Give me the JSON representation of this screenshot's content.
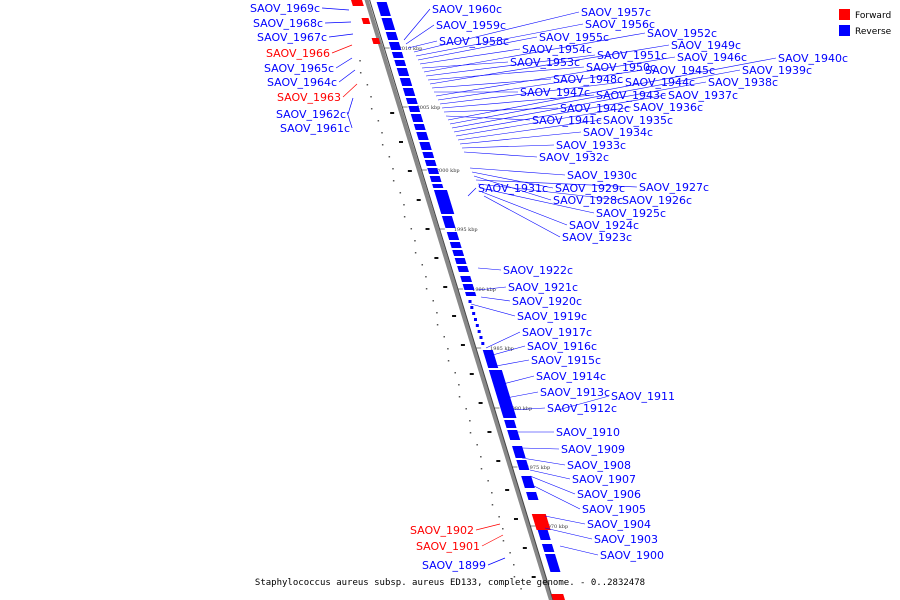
{
  "legend": {
    "forward_label": "Forward",
    "reverse_label": "Reverse",
    "forward_color": "#ff0000",
    "reverse_color": "#0000ff"
  },
  "caption": "Staphylococcus aureus subsp. aureus ED133, complete genome. - 0..2832478",
  "ticks": [
    "2010 kbp",
    "2005 kbp",
    "2000 kbp",
    "1995 kbp",
    "1990 kbp",
    "1985 kbp",
    "1980 kbp",
    "1975 kbp",
    "1970 kbp"
  ],
  "genes_left": [
    {
      "name": "SAOV_1969c",
      "strand": "reverse"
    },
    {
      "name": "SAOV_1968c",
      "strand": "reverse"
    },
    {
      "name": "SAOV_1967c",
      "strand": "reverse"
    },
    {
      "name": "SAOV_1966",
      "strand": "forward"
    },
    {
      "name": "SAOV_1965c",
      "strand": "reverse"
    },
    {
      "name": "SAOV_1964c",
      "strand": "reverse"
    },
    {
      "name": "SAOV_1963",
      "strand": "forward"
    },
    {
      "name": "SAOV_1962c",
      "strand": "reverse"
    },
    {
      "name": "SAOV_1961c",
      "strand": "reverse"
    },
    {
      "name": "SAOV_1902",
      "strand": "forward"
    },
    {
      "name": "SAOV_1901",
      "strand": "forward"
    },
    {
      "name": "SAOV_1899",
      "strand": "reverse"
    }
  ],
  "genes_right": [
    {
      "name": "SAOV_1960c",
      "strand": "reverse"
    },
    {
      "name": "SAOV_1959c",
      "strand": "reverse"
    },
    {
      "name": "SAOV_1958c",
      "strand": "reverse"
    },
    {
      "name": "SAOV_1957c",
      "strand": "reverse"
    },
    {
      "name": "SAOV_1956c",
      "strand": "reverse"
    },
    {
      "name": "SAOV_1955c",
      "strand": "reverse"
    },
    {
      "name": "SAOV_1954c",
      "strand": "reverse"
    },
    {
      "name": "SAOV_1953c",
      "strand": "reverse"
    },
    {
      "name": "SAOV_1952c",
      "strand": "reverse"
    },
    {
      "name": "SAOV_1951c",
      "strand": "reverse"
    },
    {
      "name": "SAOV_1950c",
      "strand": "reverse"
    },
    {
      "name": "SAOV_1949c",
      "strand": "reverse"
    },
    {
      "name": "SAOV_1948c",
      "strand": "reverse"
    },
    {
      "name": "SAOV_1947c",
      "strand": "reverse"
    },
    {
      "name": "SAOV_1946c",
      "strand": "reverse"
    },
    {
      "name": "SAOV_1945c",
      "strand": "reverse"
    },
    {
      "name": "SAOV_1944c",
      "strand": "reverse"
    },
    {
      "name": "SAOV_1943c",
      "strand": "reverse"
    },
    {
      "name": "SAOV_1942c",
      "strand": "reverse"
    },
    {
      "name": "SAOV_1941c",
      "strand": "reverse"
    },
    {
      "name": "SAOV_1940c",
      "strand": "reverse"
    },
    {
      "name": "SAOV_1939c",
      "strand": "reverse"
    },
    {
      "name": "SAOV_1938c",
      "strand": "reverse"
    },
    {
      "name": "SAOV_1937c",
      "strand": "reverse"
    },
    {
      "name": "SAOV_1936c",
      "strand": "reverse"
    },
    {
      "name": "SAOV_1935c",
      "strand": "reverse"
    },
    {
      "name": "SAOV_1934c",
      "strand": "reverse"
    },
    {
      "name": "SAOV_1933c",
      "strand": "reverse"
    },
    {
      "name": "SAOV_1932c",
      "strand": "reverse"
    },
    {
      "name": "SAOV_1931c",
      "strand": "reverse"
    },
    {
      "name": "SAOV_1930c",
      "strand": "reverse"
    },
    {
      "name": "SAOV_1929c",
      "strand": "reverse"
    },
    {
      "name": "SAOV_1928c",
      "strand": "reverse"
    },
    {
      "name": "SAOV_1927c",
      "strand": "reverse"
    },
    {
      "name": "SAOV_1926c",
      "strand": "reverse"
    },
    {
      "name": "SAOV_1925c",
      "strand": "reverse"
    },
    {
      "name": "SAOV_1924c",
      "strand": "reverse"
    },
    {
      "name": "SAOV_1923c",
      "strand": "reverse"
    },
    {
      "name": "SAOV_1922c",
      "strand": "reverse"
    },
    {
      "name": "SAOV_1921c",
      "strand": "reverse"
    },
    {
      "name": "SAOV_1920c",
      "strand": "reverse"
    },
    {
      "name": "SAOV_1919c",
      "strand": "reverse"
    },
    {
      "name": "SAOV_1917c",
      "strand": "reverse"
    },
    {
      "name": "SAOV_1916c",
      "strand": "reverse"
    },
    {
      "name": "SAOV_1915c",
      "strand": "reverse"
    },
    {
      "name": "SAOV_1914c",
      "strand": "reverse"
    },
    {
      "name": "SAOV_1913c",
      "strand": "reverse"
    },
    {
      "name": "SAOV_1912c",
      "strand": "reverse"
    },
    {
      "name": "SAOV_1911",
      "strand": "reverse"
    },
    {
      "name": "SAOV_1910",
      "strand": "reverse"
    },
    {
      "name": "SAOV_1909",
      "strand": "reverse"
    },
    {
      "name": "SAOV_1908",
      "strand": "reverse"
    },
    {
      "name": "SAOV_1907",
      "strand": "reverse"
    },
    {
      "name": "SAOV_1906",
      "strand": "reverse"
    },
    {
      "name": "SAOV_1905",
      "strand": "reverse"
    },
    {
      "name": "SAOV_1904",
      "strand": "reverse"
    },
    {
      "name": "SAOV_1903",
      "strand": "reverse"
    },
    {
      "name": "SAOV_1900",
      "strand": "reverse"
    }
  ]
}
